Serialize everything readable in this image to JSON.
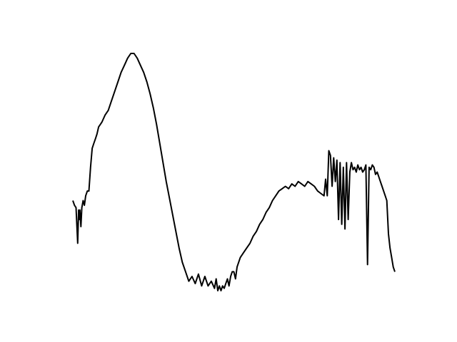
{
  "chart_data": {
    "type": "line",
    "title": "",
    "xlabel": "",
    "ylabel": "",
    "grid": false,
    "axes_visible": false,
    "xlim": [
      0,
      1
    ],
    "ylim": [
      0,
      1
    ],
    "line_color": "#000000",
    "series": [
      {
        "x": [
          0.0,
          0.005,
          0.01,
          0.015,
          0.018,
          0.02,
          0.022,
          0.025,
          0.028,
          0.032,
          0.036,
          0.04,
          0.045,
          0.05,
          0.055,
          0.06,
          0.065,
          0.07,
          0.075,
          0.08,
          0.09,
          0.1,
          0.11,
          0.12,
          0.13,
          0.14,
          0.15,
          0.16,
          0.17,
          0.18,
          0.19,
          0.2,
          0.21,
          0.22,
          0.23,
          0.24,
          0.25,
          0.26,
          0.27,
          0.28,
          0.29,
          0.3,
          0.31,
          0.32,
          0.33,
          0.34,
          0.35,
          0.36,
          0.37,
          0.38,
          0.39,
          0.4,
          0.41,
          0.42,
          0.43,
          0.44,
          0.445,
          0.45,
          0.455,
          0.46,
          0.465,
          0.47,
          0.475,
          0.48,
          0.485,
          0.49,
          0.495,
          0.5,
          0.505,
          0.51,
          0.52,
          0.53,
          0.54,
          0.55,
          0.56,
          0.57,
          0.58,
          0.59,
          0.6,
          0.61,
          0.62,
          0.63,
          0.64,
          0.65,
          0.66,
          0.67,
          0.68,
          0.69,
          0.7,
          0.71,
          0.72,
          0.73,
          0.74,
          0.75,
          0.76,
          0.77,
          0.78,
          0.785,
          0.79,
          0.795,
          0.8,
          0.805,
          0.81,
          0.815,
          0.82,
          0.825,
          0.83,
          0.835,
          0.84,
          0.845,
          0.85,
          0.855,
          0.86,
          0.865,
          0.87,
          0.875,
          0.88,
          0.885,
          0.89,
          0.895,
          0.9,
          0.905,
          0.91,
          0.915,
          0.92,
          0.925,
          0.93,
          0.935,
          0.94,
          0.945,
          0.95,
          0.955,
          0.96,
          0.965,
          0.97,
          0.975,
          0.98,
          0.985,
          0.99,
          0.995,
          1.0
        ],
        "y": [
          0.38,
          0.36,
          0.35,
          0.2,
          0.34,
          0.3,
          0.34,
          0.27,
          0.35,
          0.38,
          0.36,
          0.4,
          0.42,
          0.42,
          0.52,
          0.6,
          0.62,
          0.64,
          0.66,
          0.69,
          0.71,
          0.74,
          0.76,
          0.8,
          0.84,
          0.88,
          0.92,
          0.95,
          0.98,
          1.0,
          1.0,
          0.98,
          0.95,
          0.92,
          0.88,
          0.83,
          0.77,
          0.7,
          0.62,
          0.54,
          0.46,
          0.39,
          0.32,
          0.25,
          0.18,
          0.12,
          0.08,
          0.04,
          0.06,
          0.03,
          0.07,
          0.02,
          0.06,
          0.02,
          0.04,
          0.01,
          0.05,
          0.0,
          0.02,
          0.0,
          0.02,
          0.01,
          0.03,
          0.05,
          0.02,
          0.06,
          0.08,
          0.08,
          0.05,
          0.1,
          0.14,
          0.16,
          0.18,
          0.2,
          0.23,
          0.25,
          0.28,
          0.3,
          0.33,
          0.35,
          0.38,
          0.4,
          0.42,
          0.43,
          0.44,
          0.43,
          0.45,
          0.44,
          0.46,
          0.45,
          0.44,
          0.46,
          0.45,
          0.44,
          0.42,
          0.41,
          0.4,
          0.47,
          0.4,
          0.59,
          0.57,
          0.44,
          0.56,
          0.46,
          0.55,
          0.3,
          0.54,
          0.28,
          0.52,
          0.26,
          0.54,
          0.3,
          0.5,
          0.54,
          0.51,
          0.52,
          0.5,
          0.53,
          0.51,
          0.52,
          0.5,
          0.51,
          0.53,
          0.11,
          0.52,
          0.51,
          0.53,
          0.52,
          0.49,
          0.5,
          0.48,
          0.46,
          0.44,
          0.42,
          0.4,
          0.38,
          0.24,
          0.18,
          0.14,
          0.1,
          0.08
        ]
      }
    ]
  }
}
